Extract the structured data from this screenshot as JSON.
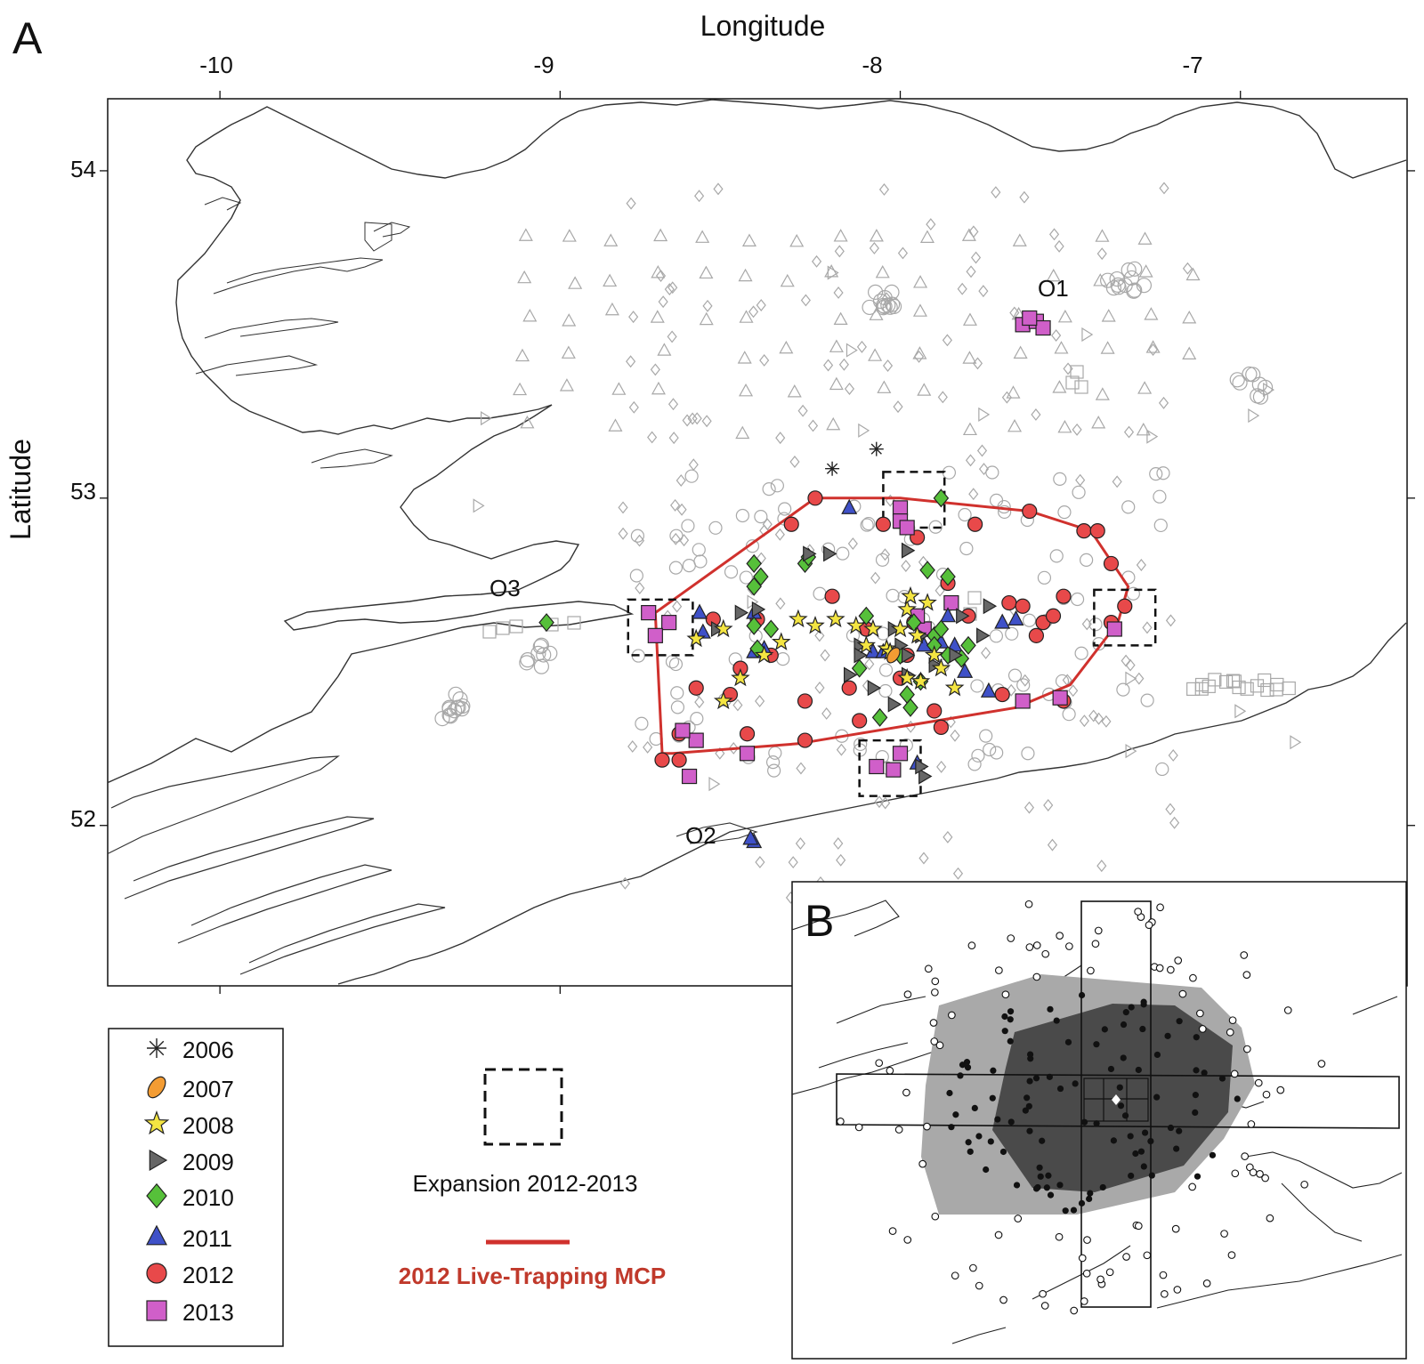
{
  "panel_a": {
    "letter": "A"
  },
  "panel_b": {
    "letter": "B"
  },
  "map": {
    "title_x": "Longitude",
    "title_y": "Latitude",
    "lon_ticks": [
      "-10",
      "-9",
      "-8",
      "-7"
    ],
    "lat_ticks": [
      "54",
      "53",
      "52"
    ],
    "xlim": [
      -10.33,
      -6.51
    ],
    "ylim": [
      51.51,
      54.22
    ]
  },
  "site_labels": [
    "O1",
    "O2",
    "O3"
  ],
  "legend": {
    "years": [
      {
        "label": "2006",
        "marker": "asterisk",
        "color": "#222222"
      },
      {
        "label": "2007",
        "marker": "ellipse",
        "color": "#f39c33"
      },
      {
        "label": "2008",
        "marker": "star",
        "color": "#f4e542"
      },
      {
        "label": "2009",
        "marker": "triangle-right",
        "color": "#666666"
      },
      {
        "label": "2010",
        "marker": "diamond",
        "color": "#56c03a"
      },
      {
        "label": "2011",
        "marker": "triangle-up",
        "color": "#3f51c8"
      },
      {
        "label": "2012",
        "marker": "circle",
        "color": "#e8494a"
      },
      {
        "label": "2013",
        "marker": "square",
        "color": "#d05fc9"
      }
    ],
    "expansion_label": "Expansion 2012-2013",
    "mcp_label": "2012 Live-Trapping MCP",
    "mcp_color": "#d0312d"
  },
  "chart_data": {
    "type": "scatter",
    "title": "",
    "xlabel": "Longitude",
    "ylabel": "Latitude",
    "xlim": [
      -10.33,
      -6.51
    ],
    "ylim": [
      51.51,
      54.22
    ],
    "grid": false,
    "legend_placement": "bottom-left",
    "series": [
      {
        "name": "2012",
        "points": [
          [
            -8.25,
            53.0
          ],
          [
            -8.05,
            52.92
          ],
          [
            -7.95,
            52.88
          ],
          [
            -7.78,
            52.92
          ],
          [
            -7.62,
            52.96
          ],
          [
            -7.46,
            52.9
          ],
          [
            -7.42,
            52.9
          ],
          [
            -7.38,
            52.8
          ],
          [
            -7.34,
            52.67
          ],
          [
            -7.38,
            52.62
          ],
          [
            -7.6,
            52.58
          ],
          [
            -7.8,
            52.64
          ],
          [
            -7.68,
            52.68
          ],
          [
            -7.52,
            52.7
          ],
          [
            -7.7,
            52.4
          ],
          [
            -7.52,
            52.38
          ],
          [
            -7.9,
            52.35
          ],
          [
            -8.12,
            52.32
          ],
          [
            -8.28,
            52.26
          ],
          [
            -8.45,
            52.28
          ],
          [
            -8.65,
            52.28
          ],
          [
            -8.65,
            52.2
          ],
          [
            -8.7,
            52.2
          ],
          [
            -8.6,
            52.42
          ],
          [
            -8.5,
            52.4
          ],
          [
            -8.38,
            52.52
          ],
          [
            -8.55,
            52.63
          ],
          [
            -8.42,
            52.63
          ],
          [
            -8.2,
            52.7
          ],
          [
            -8.1,
            52.6
          ],
          [
            -7.96,
            52.62
          ],
          [
            -7.86,
            52.74
          ],
          [
            -8.32,
            52.92
          ],
          [
            -8.0,
            52.45
          ],
          [
            -7.88,
            52.3
          ],
          [
            -8.28,
            52.38
          ],
          [
            -7.58,
            52.62
          ],
          [
            -7.64,
            52.67
          ],
          [
            -7.55,
            52.64
          ],
          [
            -7.98,
            52.52
          ],
          [
            -8.15,
            52.42
          ],
          [
            -8.47,
            52.48
          ]
        ]
      },
      {
        "name": "2013",
        "points": [
          [
            -7.64,
            53.53
          ],
          [
            -7.6,
            53.54
          ],
          [
            -7.58,
            53.52
          ],
          [
            -7.62,
            53.55
          ],
          [
            -8.0,
            52.97
          ],
          [
            -8.0,
            52.93
          ],
          [
            -7.98,
            52.91
          ],
          [
            -8.68,
            52.62
          ],
          [
            -8.72,
            52.58
          ],
          [
            -8.74,
            52.65
          ],
          [
            -7.37,
            52.6
          ],
          [
            -8.07,
            52.18
          ],
          [
            -8.02,
            52.17
          ],
          [
            -8.0,
            52.22
          ],
          [
            -8.45,
            52.22
          ],
          [
            -8.6,
            52.26
          ],
          [
            -8.64,
            52.29
          ],
          [
            -8.62,
            52.15
          ],
          [
            -7.53,
            52.39
          ],
          [
            -7.64,
            52.38
          ],
          [
            -7.85,
            52.68
          ],
          [
            -7.93,
            52.6
          ],
          [
            -7.95,
            52.64
          ]
        ]
      },
      {
        "name": "2011",
        "points": [
          [
            -8.15,
            52.97
          ],
          [
            -8.59,
            52.65
          ],
          [
            -8.43,
            52.65
          ],
          [
            -8.4,
            52.54
          ],
          [
            -8.43,
            52.53
          ],
          [
            -8.08,
            52.53
          ],
          [
            -8.05,
            52.53
          ],
          [
            -7.88,
            52.56
          ],
          [
            -7.84,
            52.55
          ],
          [
            -7.93,
            52.55
          ],
          [
            -7.86,
            52.64
          ],
          [
            -7.7,
            52.62
          ],
          [
            -7.66,
            52.63
          ],
          [
            -7.81,
            52.47
          ],
          [
            -7.74,
            52.41
          ],
          [
            -8.58,
            52.59
          ],
          [
            -7.95,
            52.19
          ],
          [
            -8.43,
            51.95
          ],
          [
            -8.44,
            51.96
          ]
        ]
      },
      {
        "name": "2010",
        "points": [
          [
            -8.43,
            52.8
          ],
          [
            -8.41,
            52.76
          ],
          [
            -8.43,
            52.73
          ],
          [
            -8.28,
            52.8
          ],
          [
            -8.27,
            52.82
          ],
          [
            -7.92,
            52.78
          ],
          [
            -7.86,
            52.76
          ],
          [
            -8.1,
            52.64
          ],
          [
            -8.12,
            52.48
          ],
          [
            -8.0,
            52.52
          ],
          [
            -7.9,
            52.58
          ],
          [
            -7.86,
            52.52
          ],
          [
            -7.82,
            52.51
          ],
          [
            -7.96,
            52.62
          ],
          [
            -7.9,
            52.55
          ],
          [
            -7.88,
            52.6
          ],
          [
            -7.8,
            52.55
          ],
          [
            -7.94,
            52.44
          ],
          [
            -7.97,
            52.36
          ],
          [
            -7.98,
            52.4
          ],
          [
            -8.06,
            52.33
          ],
          [
            -8.42,
            52.54
          ],
          [
            -8.38,
            52.6
          ],
          [
            -8.43,
            52.61
          ],
          [
            -7.88,
            53.0
          ],
          [
            -9.04,
            52.62
          ]
        ]
      },
      {
        "name": "2009",
        "points": [
          [
            -8.27,
            52.83
          ],
          [
            -8.21,
            52.83
          ],
          [
            -7.98,
            52.84
          ],
          [
            -8.54,
            52.6
          ],
          [
            -8.47,
            52.65
          ],
          [
            -8.42,
            52.66
          ],
          [
            -8.12,
            52.55
          ],
          [
            -8.12,
            52.52
          ],
          [
            -8.15,
            52.46
          ],
          [
            -8.02,
            52.6
          ],
          [
            -8.0,
            52.55
          ],
          [
            -7.98,
            52.52
          ],
          [
            -7.98,
            52.46
          ],
          [
            -7.94,
            52.58
          ],
          [
            -7.9,
            52.49
          ],
          [
            -7.84,
            52.52
          ],
          [
            -7.82,
            52.64
          ],
          [
            -7.76,
            52.58
          ],
          [
            -7.74,
            52.67
          ],
          [
            -8.02,
            52.37
          ],
          [
            -8.08,
            52.42
          ],
          [
            -7.93,
            52.15
          ],
          [
            -7.94,
            52.18
          ]
        ]
      },
      {
        "name": "2008",
        "points": [
          [
            -8.3,
            52.63
          ],
          [
            -8.25,
            52.61
          ],
          [
            -8.19,
            52.63
          ],
          [
            -8.13,
            52.61
          ],
          [
            -8.08,
            52.6
          ],
          [
            -8.35,
            52.56
          ],
          [
            -8.4,
            52.52
          ],
          [
            -8.1,
            52.55
          ],
          [
            -8.04,
            52.54
          ],
          [
            -8.0,
            52.6
          ],
          [
            -7.98,
            52.66
          ],
          [
            -7.97,
            52.7
          ],
          [
            -7.92,
            52.68
          ],
          [
            -7.95,
            52.58
          ],
          [
            -7.9,
            52.52
          ],
          [
            -7.88,
            52.48
          ],
          [
            -7.98,
            52.45
          ],
          [
            -7.94,
            52.44
          ],
          [
            -8.6,
            52.57
          ],
          [
            -8.52,
            52.6
          ],
          [
            -8.47,
            52.45
          ],
          [
            -8.52,
            52.38
          ],
          [
            -7.84,
            52.42
          ],
          [
            -8.03,
            52.53
          ]
        ]
      },
      {
        "name": "2007",
        "points": [
          [
            -8.02,
            52.52
          ]
        ]
      },
      {
        "name": "2006",
        "points": [
          [
            -8.2,
            53.09
          ],
          [
            -8.07,
            53.15
          ]
        ]
      }
    ],
    "mcp_2012_vertices": [
      [
        -8.25,
        53.0
      ],
      [
        -8.0,
        53.0
      ],
      [
        -7.62,
        52.96
      ],
      [
        -7.44,
        52.9
      ],
      [
        -7.33,
        52.73
      ],
      [
        -7.36,
        52.62
      ],
      [
        -7.5,
        52.43
      ],
      [
        -7.66,
        52.36
      ],
      [
        -8.3,
        52.25
      ],
      [
        -8.67,
        52.22
      ],
      [
        -8.7,
        52.22
      ],
      [
        -8.72,
        52.65
      ],
      [
        -8.25,
        53.0
      ]
    ],
    "expansion_boxes": [
      {
        "lon": [
          -8.05,
          -7.87
        ],
        "lat": [
          52.91,
          53.08
        ]
      },
      {
        "lon": [
          -8.8,
          -8.61
        ],
        "lat": [
          52.52,
          52.69
        ]
      },
      {
        "lon": [
          -7.43,
          -7.25
        ],
        "lat": [
          52.55,
          52.72
        ]
      },
      {
        "lon": [
          -8.12,
          -7.94
        ],
        "lat": [
          52.09,
          52.26
        ]
      }
    ]
  }
}
